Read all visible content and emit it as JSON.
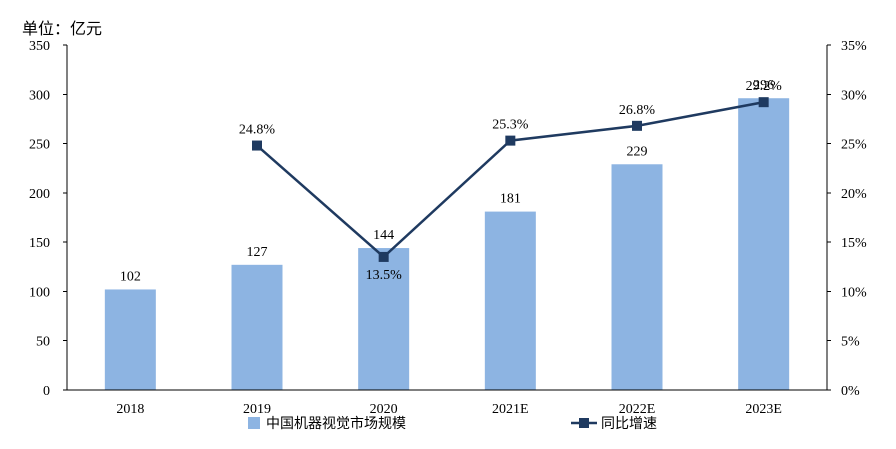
{
  "chart_data": {
    "type": "bar",
    "unit_label": "单位：亿元",
    "categories": [
      "2018",
      "2019",
      "2020",
      "2021E",
      "2022E",
      "2023E"
    ],
    "series": [
      {
        "name": "中国机器视觉市场规模",
        "type": "bar",
        "axis": "left",
        "color": "#8DB4E2",
        "values": [
          102,
          127,
          144,
          181,
          229,
          296
        ],
        "labels": [
          "102",
          "127",
          "144",
          "181",
          "229",
          "296"
        ]
      },
      {
        "name": "同比增速",
        "type": "line",
        "axis": "right",
        "color": "#1F3A60",
        "values": [
          null,
          24.8,
          13.5,
          25.3,
          26.8,
          29.2
        ],
        "labels": [
          "",
          "24.8%",
          "13.5%",
          "25.3%",
          "26.8%",
          "29.2%"
        ]
      }
    ],
    "y_left": {
      "min": 0,
      "max": 350,
      "ticks": [
        "0",
        "50",
        "100",
        "150",
        "200",
        "250",
        "300",
        "350"
      ]
    },
    "y_right": {
      "min": 0,
      "max": 35,
      "ticks": [
        "0%",
        "5%",
        "10%",
        "15%",
        "20%",
        "25%",
        "30%",
        "35%"
      ]
    },
    "grid": false,
    "legend_position": "bottom"
  }
}
